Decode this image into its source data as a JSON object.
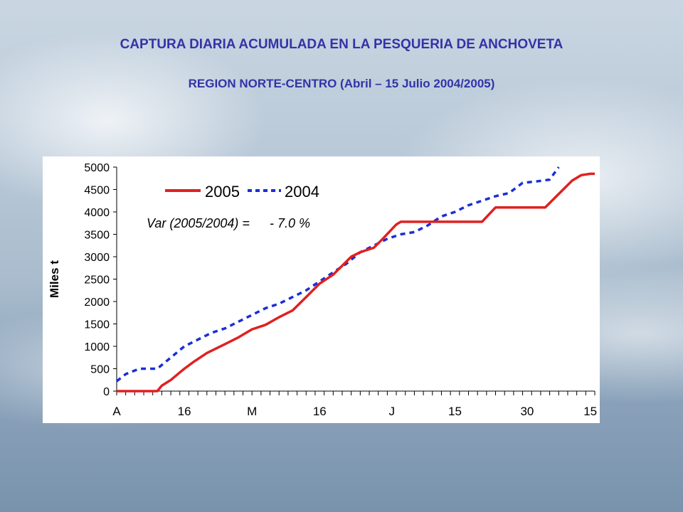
{
  "slide": {
    "title": "CAPTURA DIARIA ACUMULADA EN LA PESQUERIA DE ANCHOVETA",
    "subtitle": "REGION NORTE-CENTRO (Abril – 15 Julio 2004/2005)"
  },
  "colors": {
    "title": "#3333a8",
    "series_2005": "#e02020",
    "series_2004": "#1a2fd6"
  },
  "chart_data": {
    "type": "line",
    "ylabel": "Miles t",
    "ylim": [
      0,
      5000
    ],
    "yticks": [
      0,
      500,
      1000,
      1500,
      2000,
      2500,
      3000,
      3500,
      4000,
      4500,
      5000
    ],
    "xlim": [
      1,
      107
    ],
    "xticks": [
      {
        "x": 1,
        "label": "A"
      },
      {
        "x": 16,
        "label": "16"
      },
      {
        "x": 31,
        "label": "M"
      },
      {
        "x": 46,
        "label": "16"
      },
      {
        "x": 62,
        "label": "J"
      },
      {
        "x": 76,
        "label": "15"
      },
      {
        "x": 92,
        "label": "30"
      },
      {
        "x": 106,
        "label": "15"
      }
    ],
    "grid": false,
    "legend_position": "top-left",
    "annotation": {
      "label": "Var (2005/2004) =",
      "value": "- 7.0 %"
    },
    "series": [
      {
        "name": "2005",
        "style": "solid",
        "points": [
          [
            1,
            0
          ],
          [
            10,
            0
          ],
          [
            11,
            120
          ],
          [
            13,
            250
          ],
          [
            16,
            500
          ],
          [
            18,
            650
          ],
          [
            21,
            850
          ],
          [
            25,
            1050
          ],
          [
            28,
            1200
          ],
          [
            31,
            1380
          ],
          [
            34,
            1480
          ],
          [
            37,
            1650
          ],
          [
            40,
            1800
          ],
          [
            43,
            2100
          ],
          [
            46,
            2400
          ],
          [
            49,
            2600
          ],
          [
            51,
            2800
          ],
          [
            53,
            3000
          ],
          [
            55,
            3100
          ],
          [
            58,
            3200
          ],
          [
            60,
            3400
          ],
          [
            63,
            3720
          ],
          [
            64,
            3780
          ],
          [
            82,
            3780
          ],
          [
            85,
            4100
          ],
          [
            96,
            4100
          ],
          [
            99,
            4400
          ],
          [
            102,
            4700
          ],
          [
            104,
            4820
          ],
          [
            106,
            4850
          ],
          [
            107,
            4850
          ]
        ]
      },
      {
        "name": "2004",
        "style": "dashed",
        "points": [
          [
            1,
            220
          ],
          [
            3,
            380
          ],
          [
            6,
            500
          ],
          [
            10,
            500
          ],
          [
            13,
            750
          ],
          [
            16,
            1000
          ],
          [
            19,
            1150
          ],
          [
            22,
            1300
          ],
          [
            25,
            1400
          ],
          [
            28,
            1550
          ],
          [
            31,
            1700
          ],
          [
            34,
            1850
          ],
          [
            37,
            1950
          ],
          [
            40,
            2100
          ],
          [
            43,
            2250
          ],
          [
            46,
            2450
          ],
          [
            49,
            2650
          ],
          [
            52,
            2850
          ],
          [
            55,
            3100
          ],
          [
            58,
            3250
          ],
          [
            61,
            3400
          ],
          [
            64,
            3500
          ],
          [
            67,
            3550
          ],
          [
            70,
            3700
          ],
          [
            73,
            3900
          ],
          [
            76,
            4000
          ],
          [
            79,
            4150
          ],
          [
            82,
            4250
          ],
          [
            85,
            4350
          ],
          [
            88,
            4420
          ],
          [
            91,
            4650
          ],
          [
            94,
            4680
          ],
          [
            97,
            4720
          ],
          [
            99,
            5000
          ]
        ]
      }
    ]
  }
}
